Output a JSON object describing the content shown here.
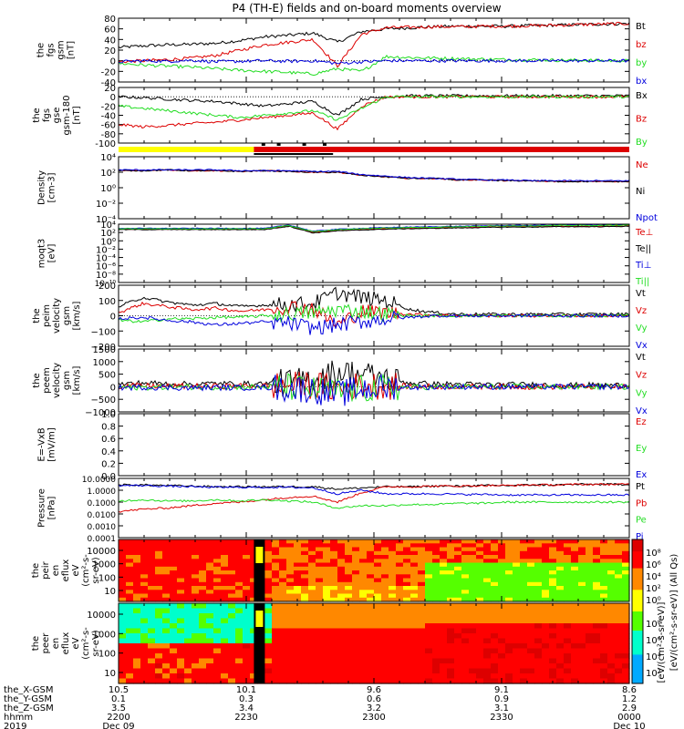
{
  "title": "P4 (TH-E) fields and on-board moments overview",
  "colors": {
    "black": "#000000",
    "red": "#dd0000",
    "green": "#22dd22",
    "blue": "#0000dd",
    "yellow": "#ffff00",
    "frame": "#000000"
  },
  "chart_data": [
    {
      "id": "fgs-gsm",
      "type": "line",
      "ylabel": [
        "the",
        "fgs",
        "gsm",
        "[nT]"
      ],
      "ylim": [
        -40,
        80
      ],
      "yticks": [
        80,
        60,
        40,
        20,
        0,
        -20,
        -40
      ],
      "series": [
        {
          "name": "Bt",
          "color": "black",
          "values": [
            25,
            28,
            30,
            31,
            33,
            38,
            45,
            48,
            52,
            35,
            55,
            60,
            62,
            64,
            65,
            65,
            65,
            66,
            67,
            68,
            69,
            70
          ]
        },
        {
          "name": "bz",
          "color": "red",
          "values": [
            -2,
            0,
            2,
            5,
            10,
            20,
            30,
            35,
            40,
            -10,
            50,
            62,
            63,
            64,
            64,
            65,
            65,
            66,
            67,
            68,
            69,
            70
          ]
        },
        {
          "name": "by",
          "color": "green",
          "values": [
            -5,
            -8,
            -10,
            -12,
            -15,
            -18,
            -20,
            -22,
            -25,
            -15,
            -20,
            8,
            6,
            5,
            4,
            3,
            2,
            2,
            1,
            1,
            0,
            0
          ]
        },
        {
          "name": "bx",
          "color": "blue",
          "values": [
            -2,
            0,
            -1,
            1,
            -2,
            -1,
            0,
            -1,
            0,
            -5,
            -2,
            0,
            0,
            0,
            0,
            0,
            0,
            0,
            0,
            0,
            0,
            0
          ]
        }
      ]
    },
    {
      "id": "fgs-gse-gsm",
      "type": "line",
      "ylabel": [
        "the",
        "fgs",
        "gse",
        "gsm-180",
        "[nT]"
      ],
      "ylim": [
        -100,
        20
      ],
      "yticks": [
        20,
        0,
        -20,
        -40,
        -60,
        -80,
        -100
      ],
      "series": [
        {
          "name": "Bx",
          "color": "black",
          "values": [
            0,
            -2,
            -5,
            -8,
            -10,
            -15,
            -20,
            -15,
            -10,
            -40,
            -5,
            0,
            2,
            2,
            2,
            2,
            2,
            2,
            2,
            2,
            2,
            2
          ]
        },
        {
          "name": "Bz",
          "color": "red",
          "values": [
            -60,
            -65,
            -62,
            -58,
            -55,
            -50,
            -45,
            -40,
            -35,
            -70,
            -20,
            0,
            0,
            0,
            0,
            0,
            0,
            0,
            0,
            0,
            0,
            0
          ]
        },
        {
          "name": "By",
          "color": "green",
          "values": [
            -20,
            -25,
            -30,
            -35,
            -40,
            -45,
            -40,
            -35,
            -30,
            -50,
            -25,
            0,
            0,
            0,
            0,
            0,
            0,
            0,
            0,
            0,
            0,
            0
          ]
        }
      ]
    },
    {
      "id": "density",
      "type": "line",
      "log": true,
      "ylabel": [
        "Density",
        "[cm-3]"
      ],
      "ylim_exp": [
        -4,
        4
      ],
      "ytick_labels": [
        "10⁴",
        "10²",
        "10⁰",
        "10⁻²",
        "10⁻⁴"
      ],
      "series": [
        {
          "name": "Ne",
          "color": "red",
          "values": [
            2.2,
            2.2,
            2.3,
            2.2,
            2.2,
            2.1,
            2.2,
            2.1,
            2.0,
            2.0,
            1.6,
            1.4,
            1.2,
            1.2,
            1.0,
            1.0,
            0.9,
            0.9,
            0.8,
            0.8,
            0.8,
            0.8
          ]
        },
        {
          "name": "Ni",
          "color": "black",
          "values": [
            2.2,
            2.2,
            2.3,
            2.2,
            2.2,
            2.1,
            2.2,
            2.1,
            2.0,
            2.0,
            1.6,
            1.4,
            1.2,
            1.2,
            1.0,
            1.0,
            0.9,
            0.9,
            0.8,
            0.8,
            0.8,
            0.8
          ]
        },
        {
          "name": "Npot",
          "color": "blue",
          "values": [
            2.3,
            2.3,
            2.3,
            2.3,
            2.3,
            2.2,
            2.2,
            2.2,
            2.1,
            2.1,
            1.7,
            1.5,
            1.3,
            1.2,
            1.1,
            1.0,
            1.0,
            0.9,
            0.9,
            0.9,
            0.9,
            0.9
          ]
        }
      ]
    },
    {
      "id": "moqt3",
      "type": "line",
      "log": true,
      "ylabel": [
        "moqt3",
        "[eV]"
      ],
      "ylim_exp": [
        -10,
        4
      ],
      "ytick_labels": [
        "10⁴",
        "10²",
        "10⁰",
        "10⁻²",
        "10⁻⁴",
        "10⁻⁶",
        "10⁻⁸",
        "10⁻¹⁰"
      ],
      "series": [
        {
          "name": "Te⊥",
          "color": "red",
          "values": [
            2.8,
            2.8,
            2.8,
            2.8,
            2.8,
            2.8,
            2.8,
            3.6,
            2.0,
            2.5,
            2.7,
            2.9,
            3.0,
            3.1,
            3.2,
            3.3,
            3.4,
            3.4,
            3.5,
            3.5,
            3.5,
            3.6
          ]
        },
        {
          "name": "Te||",
          "color": "black",
          "values": [
            2.7,
            2.7,
            2.7,
            2.7,
            2.7,
            2.7,
            2.7,
            3.5,
            1.9,
            2.4,
            2.6,
            2.8,
            2.9,
            3.0,
            3.1,
            3.2,
            3.3,
            3.3,
            3.4,
            3.4,
            3.4,
            3.5
          ]
        },
        {
          "name": "Ti⊥",
          "color": "blue",
          "values": [
            3.0,
            3.0,
            3.0,
            3.0,
            3.0,
            3.0,
            3.0,
            3.8,
            2.3,
            2.8,
            3.0,
            3.2,
            3.3,
            3.4,
            3.5,
            3.6,
            3.7,
            3.7,
            3.8,
            3.8,
            3.8,
            3.9
          ]
        },
        {
          "name": "Ti||",
          "color": "green",
          "values": [
            2.9,
            2.9,
            2.9,
            2.9,
            2.9,
            2.9,
            2.9,
            3.7,
            2.2,
            2.7,
            2.9,
            3.1,
            3.2,
            3.3,
            3.4,
            3.5,
            3.6,
            3.6,
            3.7,
            3.7,
            3.7,
            3.8
          ]
        }
      ]
    },
    {
      "id": "peim-velocity",
      "type": "line",
      "ylabel": [
        "the",
        "peim",
        "velocity",
        "gsm",
        "[km/s]"
      ],
      "ylim": [
        -200,
        200
      ],
      "yticks": [
        200,
        100,
        0,
        -100,
        -200
      ],
      "ytick_labels": [
        "200",
        "100",
        "0",
        "−100",
        "−200"
      ],
      "series": [
        {
          "name": "Vt",
          "color": "black",
          "values": [
            60,
            120,
            90,
            70,
            80,
            60,
            70,
            75,
            80,
            150,
            120,
            100,
            40,
            20,
            10,
            10,
            10,
            10,
            10,
            10,
            10,
            10
          ]
        },
        {
          "name": "Vz",
          "color": "red",
          "values": [
            20,
            80,
            60,
            40,
            50,
            30,
            40,
            60,
            50,
            -60,
            30,
            20,
            10,
            5,
            0,
            0,
            0,
            0,
            0,
            0,
            0,
            0
          ]
        },
        {
          "name": "Vy",
          "color": "green",
          "values": [
            -30,
            -40,
            -20,
            -20,
            -10,
            -10,
            0,
            10,
            20,
            40,
            30,
            10,
            0,
            0,
            0,
            0,
            0,
            0,
            0,
            0,
            0,
            0
          ]
        },
        {
          "name": "Vx",
          "color": "blue",
          "values": [
            -20,
            -10,
            -30,
            -40,
            -60,
            -50,
            -40,
            -50,
            -80,
            -60,
            -40,
            -20,
            -10,
            0,
            0,
            0,
            0,
            0,
            0,
            0,
            0,
            0
          ]
        }
      ]
    },
    {
      "id": "peem-velocity",
      "type": "line",
      "ylabel": [
        "the",
        "peem",
        "velocity",
        "gsm",
        "[km/s]"
      ],
      "ylim": [
        -1000,
        1500
      ],
      "yticks": [
        1500,
        1000,
        500,
        0,
        -500,
        -1000
      ],
      "ytick_labels": [
        "1500",
        "1000",
        "500",
        "0",
        "−500",
        "−1000"
      ],
      "series": [
        {
          "name": "Vt",
          "color": "black",
          "values": [
            100,
            150,
            120,
            100,
            130,
            110,
            120,
            160,
            300,
            600,
            500,
            300,
            150,
            100,
            100,
            80,
            80,
            80,
            60,
            60,
            60,
            60
          ]
        },
        {
          "name": "Vz",
          "color": "red",
          "values": [
            20,
            40,
            20,
            30,
            20,
            30,
            40,
            50,
            80,
            -100,
            60,
            40,
            20,
            10,
            10,
            10,
            0,
            0,
            0,
            0,
            0,
            0
          ]
        },
        {
          "name": "Vy",
          "color": "green",
          "values": [
            -20,
            -30,
            -20,
            -10,
            -20,
            -10,
            0,
            -20,
            -150,
            -200,
            -100,
            -50,
            -20,
            -10,
            0,
            0,
            0,
            0,
            0,
            0,
            0,
            0
          ]
        },
        {
          "name": "Vx",
          "color": "blue",
          "values": [
            -40,
            -20,
            -30,
            -50,
            -30,
            -40,
            -20,
            -50,
            -120,
            -300,
            -80,
            -40,
            -20,
            -10,
            0,
            0,
            0,
            0,
            0,
            0,
            0,
            0
          ]
        }
      ]
    },
    {
      "id": "e-vxb",
      "type": "line",
      "ylabel": [
        "E=-VxB",
        "[mV/m]"
      ],
      "ylim": [
        0.0,
        1.0
      ],
      "yticks": [
        1.0,
        0.8,
        0.6,
        0.4,
        0.2,
        0.0
      ],
      "ytick_labels": [
        "1.0",
        "0.8",
        "0.6",
        "0.4",
        "0.2",
        "0.0"
      ],
      "series": [
        {
          "name": "Ez",
          "color": "red",
          "values": []
        },
        {
          "name": "Ey",
          "color": "green",
          "values": []
        },
        {
          "name": "Ex",
          "color": "blue",
          "values": []
        }
      ]
    },
    {
      "id": "pressure",
      "type": "line",
      "log": true,
      "ylabel": [
        "Pressure",
        "[nPa]"
      ],
      "ylim_exp": [
        -4,
        1
      ],
      "ytick_labels": [
        "10.0000",
        "1.0000",
        "0.1000",
        "0.0100",
        "0.0010",
        "0.0001"
      ],
      "series": [
        {
          "name": "Pt",
          "color": "black",
          "values": [
            0.45,
            0.45,
            0.4,
            0.35,
            0.3,
            0.3,
            0.3,
            0.3,
            0.3,
            0.1,
            0.2,
            0.3,
            0.3,
            0.35,
            0.35,
            0.4,
            0.4,
            0.45,
            0.45,
            0.5,
            0.5,
            0.5
          ]
        },
        {
          "name": "Pb",
          "color": "red",
          "values": [
            -1.8,
            -1.6,
            -1.5,
            -1.3,
            -1.1,
            -1.0,
            -0.8,
            -0.6,
            -0.5,
            -1.0,
            -0.2,
            0.3,
            0.3,
            0.35,
            0.35,
            0.4,
            0.4,
            0.45,
            0.45,
            0.5,
            0.5,
            0.5
          ]
        },
        {
          "name": "Pe",
          "color": "green",
          "values": [
            -0.9,
            -0.8,
            -0.9,
            -0.9,
            -0.8,
            -0.9,
            -0.8,
            -0.9,
            -1.0,
            -1.5,
            -1.3,
            -1.3,
            -1.2,
            -1.2,
            -1.1,
            -1.1,
            -1.0,
            -1.0,
            -1.0,
            -1.0,
            -1.0,
            -1.0
          ]
        },
        {
          "name": "Pi",
          "color": "blue",
          "values": [
            0.4,
            0.4,
            0.35,
            0.3,
            0.25,
            0.25,
            0.25,
            0.25,
            0.2,
            -0.3,
            0.0,
            -0.3,
            -0.3,
            -0.3,
            -0.35,
            -0.35,
            -0.4,
            -0.4,
            -0.4,
            -0.4,
            -0.4,
            -0.4
          ]
        }
      ]
    },
    {
      "id": "peir-eflux",
      "type": "heatmap",
      "ylabel": [
        "the",
        "peir",
        "en",
        "eflux",
        "eV",
        "(cm²-s-",
        "sr-eV)"
      ],
      "ytick_labels": [
        "10000",
        "1000",
        "100",
        "10"
      ]
    },
    {
      "id": "peer-eflux",
      "type": "heatmap",
      "ylabel": [
        "the",
        "peer",
        "en",
        "eflux",
        "eV",
        "(cm²-s-",
        "sr-eV)"
      ],
      "ytick_labels": [
        "10000",
        "1000",
        "100",
        "10"
      ]
    }
  ],
  "colorbar": {
    "label": "[eV/(cm²-s-sr-eV)] (All Qs)",
    "label_overlap": "[eV/(cm²-s-sr-eV)]",
    "upper_ticks": [
      "10⁸",
      "10⁶",
      "10⁴",
      "10²",
      "10⁰"
    ],
    "lower_ticks": [
      "10⁸",
      "10⁶",
      "10⁴",
      "10²"
    ]
  },
  "xaxis": {
    "row_labels": [
      "the_X-GSM",
      "the_Y-GSM",
      "the_Z-GSM",
      "hhmm",
      "2019"
    ],
    "ticks": [
      {
        "values": [
          "10.5",
          "0.1",
          "3.5",
          "2200",
          "Dec 09"
        ]
      },
      {
        "values": [
          "10.1",
          "0.3",
          "3.4",
          "2230",
          ""
        ]
      },
      {
        "values": [
          "9.6",
          "0.6",
          "3.2",
          "2300",
          ""
        ]
      },
      {
        "values": [
          "9.1",
          "0.9",
          "3.1",
          "2330",
          ""
        ]
      },
      {
        "values": [
          "8.6",
          "1.2",
          "2.9",
          "0000",
          "Dec 10"
        ]
      }
    ]
  }
}
